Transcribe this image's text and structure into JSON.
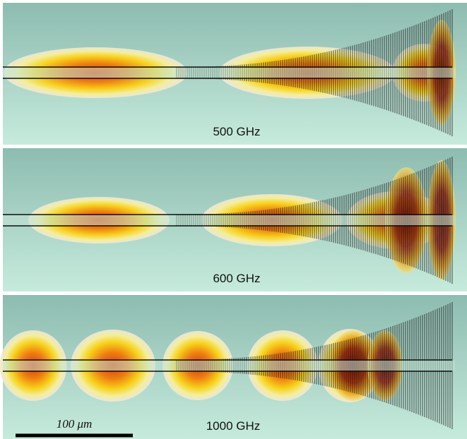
{
  "panels": [
    {
      "label": "500 GHz"
    },
    {
      "label": "600 GHz"
    },
    {
      "label": "1000 GHz"
    }
  ],
  "scale_bar": {
    "label": "100 μm"
  }
}
